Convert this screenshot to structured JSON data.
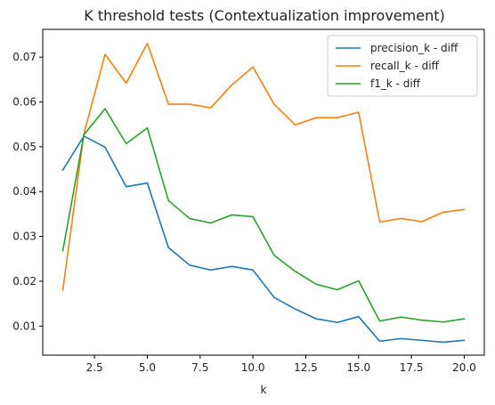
{
  "chart_data": {
    "type": "line",
    "title": "K threshold tests (Contextualization improvement)",
    "xlabel": "k",
    "ylabel": "",
    "xlim": [
      0.05,
      20.95
    ],
    "ylim": [
      0.0035,
      0.0762
    ],
    "xticks": [
      2.5,
      5.0,
      7.5,
      10.0,
      12.5,
      15.0,
      17.5,
      20.0
    ],
    "xtick_labels": [
      "2.5",
      "5.0",
      "7.5",
      "10.0",
      "12.5",
      "15.0",
      "17.5",
      "20.0"
    ],
    "yticks": [
      0.01,
      0.02,
      0.03,
      0.04,
      0.05,
      0.06,
      0.07
    ],
    "ytick_labels": [
      "0.01",
      "0.02",
      "0.03",
      "0.04",
      "0.05",
      "0.06",
      "0.07"
    ],
    "grid": false,
    "legend_position": "top-right",
    "x": [
      1,
      2,
      3,
      4,
      5,
      6,
      7,
      8,
      9,
      10,
      11,
      12,
      13,
      14,
      15,
      16,
      17,
      18,
      19,
      20
    ],
    "series": [
      {
        "name": "precision_k - diff",
        "color": "#1f77b4",
        "values": [
          0.0448,
          0.0524,
          0.0499,
          0.0411,
          0.0419,
          0.0275,
          0.0236,
          0.0225,
          0.0233,
          0.0225,
          0.0164,
          0.0138,
          0.0116,
          0.0108,
          0.0121,
          0.0066,
          0.0072,
          0.0068,
          0.0064,
          0.0068
        ]
      },
      {
        "name": "recall_k - diff",
        "color": "#ff7f0e",
        "values": [
          0.018,
          0.0529,
          0.0706,
          0.0642,
          0.0731,
          0.0595,
          0.0595,
          0.0587,
          0.0638,
          0.0678,
          0.0595,
          0.0549,
          0.0565,
          0.0565,
          0.0577,
          0.0332,
          0.034,
          0.0333,
          0.0354,
          0.036
        ]
      },
      {
        "name": "f1_k - diff",
        "color": "#2ca02c",
        "values": [
          0.0268,
          0.0527,
          0.0585,
          0.0507,
          0.0542,
          0.038,
          0.034,
          0.033,
          0.0348,
          0.0344,
          0.0258,
          0.0222,
          0.0193,
          0.0181,
          0.0201,
          0.0111,
          0.012,
          0.0113,
          0.0109,
          0.0116
        ]
      }
    ]
  }
}
